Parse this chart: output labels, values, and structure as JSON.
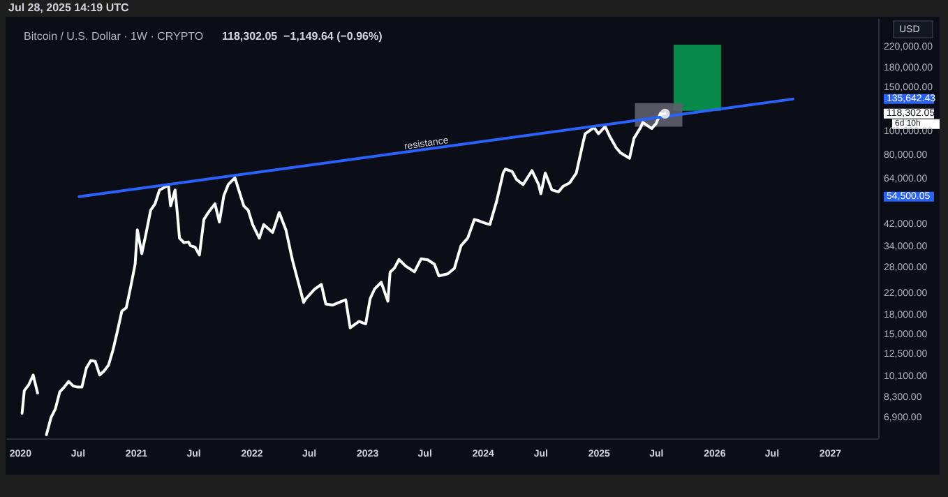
{
  "chart_data": {
    "type": "line",
    "title": "Bitcoin / U.S. Dollar · 1W · CRYPTO",
    "subtitle": "118,302.05  −1,149.64 (−0.96%)",
    "ylabel": "USD",
    "log": "y",
    "grid": false,
    "marker": "none",
    "annotations": [
      "Jul 28, 2025 14:19 UTC",
      {
        "text": "resistance",
        "x": "2023-07-08",
        "y": 85050
      },
      "6d 10h"
    ],
    "xlim": [
      "2019-11-20",
      "2027-06-01"
    ],
    "xticks": [
      {
        "value": "2020-01-01",
        "label": "2020"
      },
      {
        "value": "2020-07-01",
        "label": "Jul"
      },
      {
        "value": "2021-01-01",
        "label": "2021"
      },
      {
        "value": "2021-07-01",
        "label": "Jul"
      },
      {
        "value": "2022-01-01",
        "label": "2022"
      },
      {
        "value": "2022-07-01",
        "label": "Jul"
      },
      {
        "value": "2023-01-01",
        "label": "2023"
      },
      {
        "value": "2023-07-01",
        "label": "Jul"
      },
      {
        "value": "2024-01-01",
        "label": "2024"
      },
      {
        "value": "2024-07-01",
        "label": "Jul"
      },
      {
        "value": "2025-01-01",
        "label": "2025"
      },
      {
        "value": "2025-07-01",
        "label": "Jul"
      },
      {
        "value": "2026-01-01",
        "label": "2026"
      },
      {
        "value": "2026-07-01",
        "label": "Jul"
      },
      {
        "value": "2027-01-01",
        "label": "2027"
      }
    ],
    "ylim": [
      5700,
      285000
    ],
    "yticks": [
      {
        "value": 6900,
        "label": "6,900.00"
      },
      {
        "value": 8300,
        "label": "8,300.00"
      },
      {
        "value": 10100,
        "label": "10,100.00"
      },
      {
        "value": 12500,
        "label": "12,500.00"
      },
      {
        "value": 15000,
        "label": "15,000.00"
      },
      {
        "value": 18000,
        "label": "18,000.00"
      },
      {
        "value": 22000,
        "label": "22,000.00"
      },
      {
        "value": 28000,
        "label": "28,000.00"
      },
      {
        "value": 34000,
        "label": "34,000.00"
      },
      {
        "value": 42000,
        "label": "42,000.00"
      },
      {
        "value": 64000,
        "label": "64,000.00"
      },
      {
        "value": 80000,
        "label": "80,000.00"
      },
      {
        "value": 54500.05,
        "label": "54,500.05"
      },
      {
        "value": 100000,
        "label": "100,000.00"
      },
      {
        "value": 118302.05,
        "label": "118,302.05"
      },
      {
        "value": 135642.43,
        "label": "135,642.43"
      },
      {
        "value": 150000,
        "label": "150,000.00"
      },
      {
        "value": 180000,
        "label": "180,000.00"
      },
      {
        "value": 220000,
        "label": "220,000.00"
      }
    ],
    "series": [
      {
        "color": "#ffffff",
        "x": [
          "2020-01-06",
          "2020-01-13",
          "2020-01-27",
          "2020-02-10",
          "2020-02-24",
          "2020-03-09",
          "2020-03-23",
          "2020-04-06",
          "2020-04-20",
          "2020-05-04",
          "2020-05-18",
          "2020-06-01",
          "2020-06-15",
          "2020-06-29",
          "2020-07-13",
          "2020-07-27",
          "2020-08-10",
          "2020-08-24",
          "2020-09-07",
          "2020-09-21",
          "2020-10-05",
          "2020-10-19",
          "2020-11-02",
          "2020-11-16",
          "2020-11-30",
          "2020-12-14",
          "2020-12-28",
          "2021-01-04",
          "2021-01-18",
          "2021-02-01",
          "2021-02-15",
          "2021-03-01",
          "2021-03-15",
          "2021-04-05",
          "2021-04-12",
          "2021-04-19",
          "2021-05-03",
          "2021-05-10",
          "2021-05-17",
          "2021-05-31",
          "2021-06-14",
          "2021-06-21",
          "2021-07-05",
          "2021-07-19",
          "2021-08-02",
          "2021-08-16",
          "2021-09-06",
          "2021-09-20",
          "2021-10-04",
          "2021-10-18",
          "2021-11-08",
          "2021-11-22",
          "2021-12-06",
          "2021-12-20",
          "2022-01-03",
          "2022-01-24",
          "2022-02-07",
          "2022-03-07",
          "2022-03-28",
          "2022-04-18",
          "2022-05-09",
          "2022-06-13",
          "2022-06-20",
          "2022-07-18",
          "2022-08-08",
          "2022-08-22",
          "2022-09-12",
          "2022-10-24",
          "2022-11-07",
          "2022-12-05",
          "2022-12-26",
          "2023-01-09",
          "2023-01-23",
          "2023-02-13",
          "2023-03-06",
          "2023-03-13",
          "2023-03-27",
          "2023-04-10",
          "2023-05-01",
          "2023-05-29",
          "2023-06-19",
          "2023-07-10",
          "2023-07-31",
          "2023-08-14",
          "2023-09-11",
          "2023-10-02",
          "2023-10-23",
          "2023-11-13",
          "2023-12-04",
          "2023-12-18",
          "2024-01-08",
          "2024-01-22",
          "2024-02-12",
          "2024-03-04",
          "2024-03-11",
          "2024-04-01",
          "2024-04-15",
          "2024-05-06",
          "2024-06-03",
          "2024-06-24",
          "2024-07-01",
          "2024-07-15",
          "2024-08-05",
          "2024-08-26",
          "2024-09-09",
          "2024-09-30",
          "2024-10-21",
          "2024-11-11",
          "2024-11-18",
          "2024-12-16",
          "2024-12-30",
          "2025-01-20",
          "2025-02-03",
          "2025-02-24",
          "2025-03-10",
          "2025-04-07",
          "2025-04-21",
          "2025-05-12",
          "2025-05-19",
          "2025-06-16",
          "2025-06-30",
          "2025-07-14",
          "2025-07-21",
          "2025-07-28"
        ],
        "values": [
          7200,
          8900,
          9400,
          10300,
          8700,
          null,
          5900,
          6900,
          7500,
          8800,
          9200,
          9700,
          9300,
          9200,
          9200,
          11000,
          11800,
          11700,
          10300,
          10700,
          11300,
          13000,
          15500,
          18700,
          19300,
          23500,
          29000,
          40000,
          32000,
          39000,
          48000,
          51000,
          58000,
          60000,
          61000,
          50000,
          58000,
          47000,
          37000,
          35500,
          35700,
          34500,
          34000,
          31600,
          44000,
          47000,
          51000,
          43000,
          55000,
          61000,
          65000,
          57000,
          50000,
          48000,
          42000,
          37000,
          42000,
          39000,
          47000,
          40000,
          30000,
          20300,
          21000,
          23000,
          24000,
          20000,
          19800,
          20800,
          16000,
          17000,
          16600,
          21000,
          23000,
          24500,
          20500,
          26900,
          28000,
          30300,
          28500,
          27000,
          30500,
          30200,
          29000,
          26000,
          26500,
          27900,
          34500,
          37000,
          44000,
          43500,
          42500,
          42000,
          52000,
          68000,
          70500,
          69000,
          64000,
          61000,
          69500,
          61000,
          56000,
          68000,
          58000,
          57000,
          60000,
          62000,
          68000,
          90000,
          98000,
          104000,
          98000,
          105000,
          96000,
          86000,
          82000,
          78000,
          94000,
          104000,
          109000,
          103000,
          108000,
          119000,
          117000,
          118302.05
        ]
      },
      {
        "type": "line",
        "color": "#2962ff",
        "x": [
          "2020-07-04",
          "2026-09-05"
        ],
        "values": [
          54500.05,
          135642.43
        ]
      },
      {
        "type": "bar",
        "color": "#089950",
        "x": [
          "2025-11-07"
        ],
        "base": [
          121500
        ],
        "values": [
          104000
        ]
      },
      {
        "type": "bar",
        "color": "#5d606b",
        "x": [
          "2025-07-08"
        ],
        "base": [
          104800
        ],
        "values": [
          25700
        ]
      },
      {
        "type": "scatter",
        "color": "#ffffff",
        "marker": "circle",
        "x": [
          "2025-07-28"
        ],
        "values": [
          118302.05
        ]
      }
    ]
  }
}
